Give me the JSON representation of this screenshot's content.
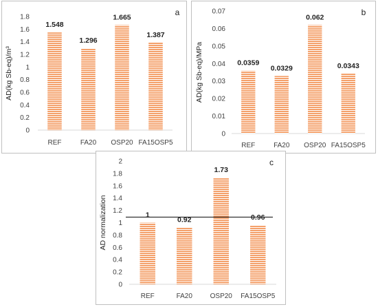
{
  "colors": {
    "bar": "#f4a06a",
    "bar_stripe": "#ffffff",
    "axis": "#d9d9d9",
    "refline": "#222222"
  },
  "chart_data": [
    {
      "type": "bar",
      "panel_label": "a",
      "categories": [
        "REF",
        "FA20",
        "OSP20",
        "FA15OSP5"
      ],
      "values": [
        1.548,
        1.296,
        1.665,
        1.387
      ],
      "data_labels": [
        "1.548",
        "1.296",
        "1.665",
        "1.387"
      ],
      "ylabel": "AD(kg Sb-eq)/m³",
      "ylim": [
        0,
        1.8
      ],
      "yticks": [
        "0",
        "0.2",
        "0.4",
        "0.6",
        "0.8",
        "1",
        "1.2",
        "1.4",
        "1.6",
        "1.8"
      ],
      "grid": false
    },
    {
      "type": "bar",
      "panel_label": "b",
      "categories": [
        "REF",
        "FA20",
        "OSP20",
        "FA15OSP5"
      ],
      "values": [
        0.0359,
        0.0329,
        0.062,
        0.0343
      ],
      "data_labels": [
        "0.0359",
        "0.0329",
        "0.062",
        "0.0343"
      ],
      "ylabel": "AD(kg Sb-eq)/MPa",
      "ylim": [
        0,
        0.07
      ],
      "yticks": [
        "0",
        "0.01",
        "0.02",
        "0.03",
        "0.04",
        "0.05",
        "0.06",
        "0.07"
      ],
      "grid": false
    },
    {
      "type": "bar",
      "panel_label": "c",
      "categories": [
        "REF",
        "FA20",
        "OSP20",
        "FA15OSP5"
      ],
      "values": [
        1,
        0.92,
        1.73,
        0.96
      ],
      "data_labels": [
        "1",
        "0.92",
        "1.73",
        "0.96"
      ],
      "ylabel": "AD normalization",
      "ylim": [
        0,
        2
      ],
      "yticks": [
        "0",
        "0.2",
        "0.4",
        "0.6",
        "0.8",
        "1",
        "1.2",
        "1.4",
        "1.6",
        "1.8",
        "2"
      ],
      "reference_line": 1.09,
      "grid": false
    }
  ]
}
